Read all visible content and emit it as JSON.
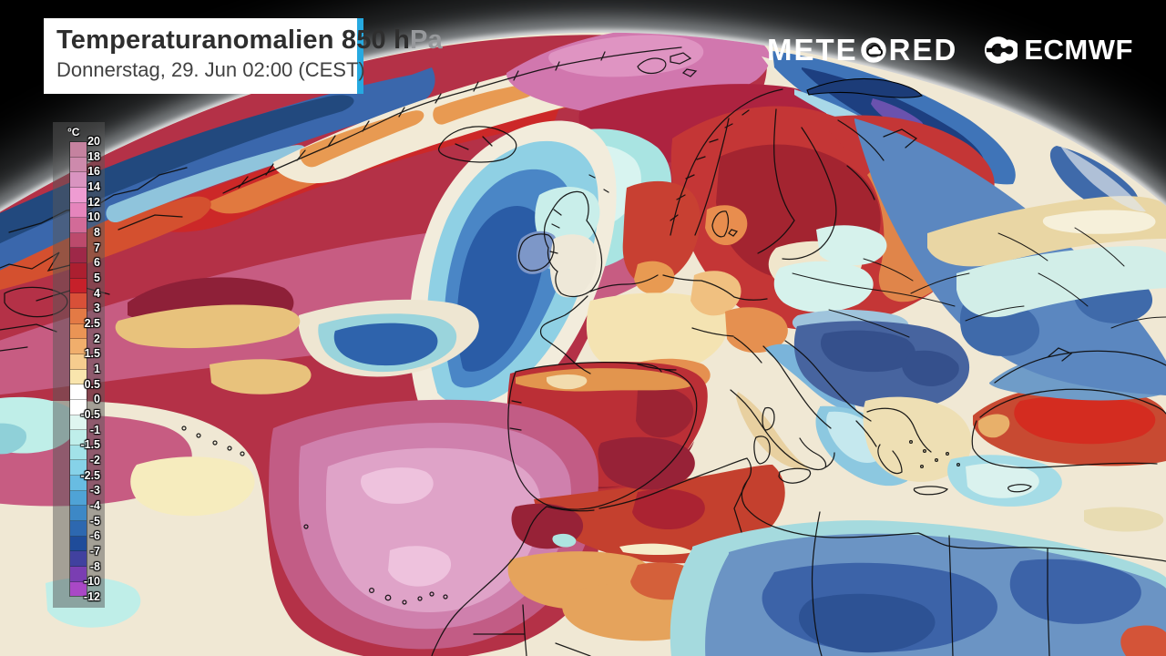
{
  "header": {
    "title": "Temperaturanomalien 850 h",
    "title_suffix": "Pa",
    "subtitle": "Donnerstag, 29. Jun 02:00 (CEST)"
  },
  "branding": {
    "meteored_left": "METE",
    "meteored_right": "RED",
    "ecmwf": "ECMWF"
  },
  "legend": {
    "unit": "°C",
    "labels": [
      "20",
      "18",
      "16",
      "14",
      "12",
      "10",
      "8",
      "7",
      "6",
      "5",
      "4",
      "3",
      "2.5",
      "2",
      "1.5",
      "1",
      "0.5",
      "0",
      "-0.5",
      "-1",
      "-1.5",
      "-2",
      "-2.5",
      "-3",
      "-4",
      "-5",
      "-6",
      "-7",
      "-8",
      "-10",
      "-12"
    ],
    "cell_colors": [
      "#c5829f",
      "#cd8aac",
      "#d994c0",
      "#ee9cd2",
      "#e585bc",
      "#d26b98",
      "#bc4a6c",
      "#9e2848",
      "#ac1f30",
      "#c6202a",
      "#d85038",
      "#e37a45",
      "#ea9455",
      "#f0ae6c",
      "#f6cc8e",
      "#f9e5ad",
      "#ffffff",
      "#ffffff",
      "#dff5f0",
      "#bfeeea",
      "#a2e2e8",
      "#86d2e8",
      "#68bce2",
      "#4fa3d6",
      "#3d88c6",
      "#2d68b0",
      "#1f4c9a",
      "#41419f",
      "#7a3eb2",
      "#a948c6"
    ]
  },
  "colors": {
    "accent_cyan": "#26a9e0",
    "space_black": "#000000",
    "legend_panel": "rgba(88,88,88,0.5)",
    "map_base_cream": "#f0e8d4"
  }
}
